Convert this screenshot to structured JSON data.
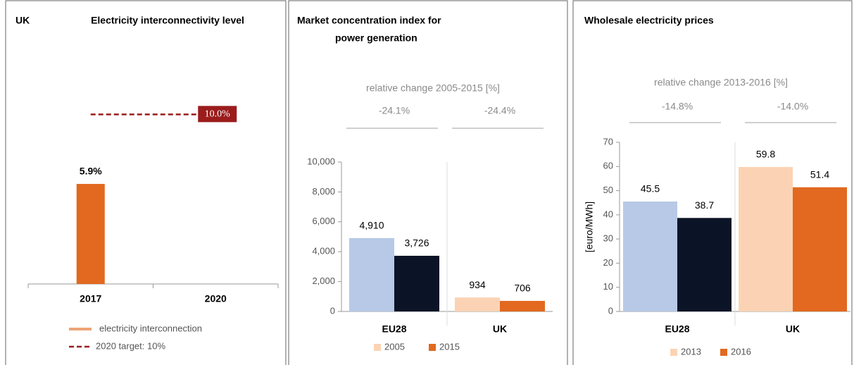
{
  "chart_data": [
    {
      "type": "bar",
      "label": "UK",
      "title": [
        "Electricity interconnectivity level"
      ],
      "categories": [
        "2017",
        "2020"
      ],
      "series": [
        {
          "name": "electricity interconnection",
          "color": "#e2691f",
          "values": [
            5.9,
            null
          ],
          "value_labels": [
            "5.9%",
            null
          ]
        }
      ],
      "target": {
        "name": "2020 target: 10%",
        "value": 10,
        "label": "10.0%",
        "color": "#9b1c1c"
      },
      "ylim": [
        0,
        15
      ]
    },
    {
      "type": "bar",
      "title": [
        "Market concentration index for",
        "power generation"
      ],
      "categories": [
        "EU28",
        "UK"
      ],
      "series": [
        {
          "name": "2005",
          "color": "#fbd3b4",
          "colors": [
            "#b7c9e6",
            "#fbd3b4"
          ],
          "values": [
            4910,
            934
          ],
          "value_labels": [
            "4,910",
            "934"
          ]
        },
        {
          "name": "2015",
          "color": "#e2691f",
          "colors": [
            "#0b1426",
            "#e2691f"
          ],
          "values": [
            3726,
            706
          ],
          "value_labels": [
            "3,726",
            "706"
          ]
        }
      ],
      "changes": {
        "label": "relative change 2005-2015 [%]",
        "values": [
          -24.1,
          -24.4
        ],
        "value_labels": [
          "-24.1%",
          "-24.4%"
        ]
      },
      "ylim": [
        0,
        10000
      ],
      "yticks": [
        0,
        {
          "value": 2000,
          "label": "2,000"
        },
        {
          "value": 4000,
          "label": "4,000"
        },
        {
          "value": 6000,
          "label": "6,000"
        },
        {
          "value": 8000,
          "label": "8,000"
        },
        {
          "value": 10000,
          "label": "10,000"
        }
      ]
    },
    {
      "type": "bar",
      "title": [
        "Wholesale electricity prices"
      ],
      "ylabel": "[euro/MWh]",
      "categories": [
        "EU28",
        "UK"
      ],
      "series": [
        {
          "name": "2013",
          "color": "#fbd3b4",
          "colors": [
            "#b7c9e6",
            "#fbd3b4"
          ],
          "values": [
            45.5,
            59.8
          ]
        },
        {
          "name": "2016",
          "color": "#e2691f",
          "colors": [
            "#0b1426",
            "#e2691f"
          ],
          "values": [
            38.7,
            51.4
          ]
        }
      ],
      "changes": {
        "label": "relative change 2013-2016 [%]",
        "values": [
          -14.8,
          -14.0
        ],
        "value_labels": [
          "-14.8%",
          "-14.0%"
        ]
      },
      "ylim": [
        0,
        70
      ],
      "yticks": [
        0,
        10,
        20,
        30,
        40,
        50,
        60,
        70
      ]
    }
  ]
}
